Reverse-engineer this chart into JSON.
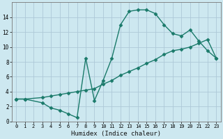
{
  "xlabel": "Humidex (Indice chaleur)",
  "bg_color": "#cde8f0",
  "grid_color": "#adc8d8",
  "line_color": "#1a7a6a",
  "xlim": [
    -0.5,
    23.5
  ],
  "ylim": [
    0,
    16
  ],
  "xticks": [
    0,
    1,
    2,
    3,
    4,
    5,
    6,
    7,
    8,
    9,
    10,
    11,
    12,
    13,
    14,
    15,
    16,
    17,
    18,
    19,
    20,
    21,
    22,
    23
  ],
  "yticks": [
    0,
    2,
    4,
    6,
    8,
    10,
    12,
    14
  ],
  "curve1_x": [
    0,
    1,
    3,
    4,
    5,
    6,
    7,
    8,
    9,
    10,
    11,
    12,
    13,
    14,
    15,
    16,
    17,
    18,
    19,
    20,
    21,
    22,
    23
  ],
  "curve1_y": [
    3,
    3,
    2.5,
    1.8,
    1.5,
    1.0,
    0.5,
    8.5,
    2.8,
    5.5,
    8.5,
    13.0,
    14.8,
    15.0,
    15.0,
    14.5,
    13.0,
    11.8,
    11.5,
    12.3,
    10.8,
    9.5,
    8.5
  ],
  "curve2_x": [
    0,
    1,
    3,
    4,
    5,
    6,
    7,
    8,
    9,
    10,
    11,
    12,
    13,
    14,
    15,
    16,
    17,
    18,
    19,
    20,
    21,
    22,
    23
  ],
  "curve2_y": [
    3.0,
    3.0,
    3.2,
    3.4,
    3.6,
    3.8,
    4.0,
    4.2,
    4.4,
    5.0,
    5.5,
    6.2,
    6.7,
    7.2,
    7.8,
    8.3,
    9.0,
    9.5,
    9.7,
    10.0,
    10.5,
    11.0,
    8.5
  ],
  "marker": "D",
  "markersize": 2.5,
  "linewidth": 1.0
}
